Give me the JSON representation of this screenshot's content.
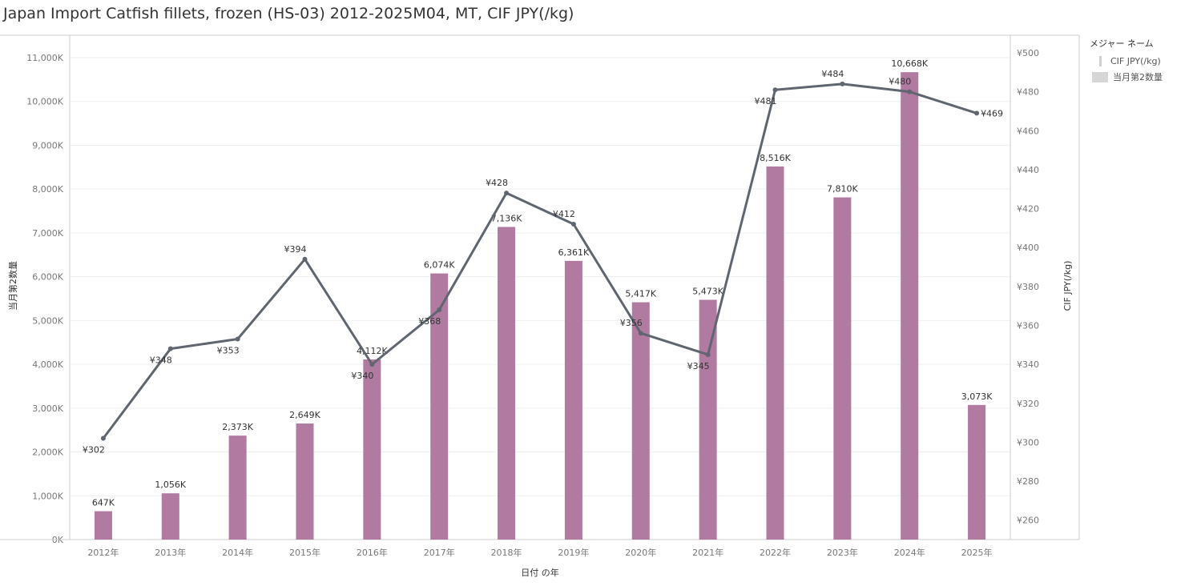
{
  "title": "Japan Import Catfish fillets, frozen (HS-03) 2012-2025M04, MT, CIF JPY(/kg)",
  "legend": {
    "title": "メジャー ネーム",
    "items": [
      {
        "label": "CIF JPY(/kg)",
        "kind": "line"
      },
      {
        "label": "当月第2数量",
        "kind": "bar"
      }
    ]
  },
  "colors": {
    "bar": "#b07aa1",
    "line": "#5f6670",
    "grid": "#efefef",
    "axis": "#cccccc"
  },
  "chart_data": {
    "type": "bar+line",
    "title": "Japan Import Catfish fillets, frozen (HS-03) 2012-2025M04, MT, CIF JPY(/kg)",
    "xlabel": "日付 の年",
    "ylabel_left": "当月第2数量",
    "ylabel_right": "CIF JPY(/kg)",
    "categories": [
      "2012年",
      "2013年",
      "2014年",
      "2015年",
      "2016年",
      "2017年",
      "2018年",
      "2019年",
      "2020年",
      "2021年",
      "2022年",
      "2023年",
      "2024年",
      "2025年"
    ],
    "bar_series": {
      "name": "当月第2数量",
      "values": [
        647,
        1056,
        2373,
        2649,
        4112,
        6074,
        7136,
        6361,
        5417,
        5473,
        8516,
        7810,
        10668,
        3073
      ],
      "labels": [
        "647K",
        "1,056K",
        "2,373K",
        "2,649K",
        "4,112K",
        "6,074K",
        "7,136K",
        "6,361K",
        "5,417K",
        "5,473K",
        "8,516K",
        "7,810K",
        "10,668K",
        "3,073K"
      ]
    },
    "line_series": {
      "name": "CIF JPY(/kg)",
      "values": [
        302,
        348,
        353,
        394,
        340,
        368,
        428,
        412,
        356,
        345,
        481,
        484,
        480,
        469
      ],
      "labels": [
        "¥302",
        "¥348",
        "¥353",
        "¥394",
        "¥340",
        "¥368",
        "¥428",
        "¥412",
        "¥356",
        "¥345",
        "¥481",
        "¥484",
        "¥480",
        "¥469"
      ]
    },
    "left_axis": {
      "ticks": [
        0,
        1000,
        2000,
        3000,
        4000,
        5000,
        6000,
        7000,
        8000,
        9000,
        10000,
        11000
      ],
      "tick_labels": [
        "0K",
        "1,000K",
        "2,000K",
        "3,000K",
        "4,000K",
        "5,000K",
        "6,000K",
        "7,000K",
        "8,000K",
        "9,000K",
        "10,000K",
        "11,000K"
      ],
      "ylim": [
        0,
        11000
      ]
    },
    "right_axis": {
      "ticks": [
        260,
        280,
        300,
        320,
        340,
        360,
        380,
        400,
        420,
        440,
        460,
        480,
        500
      ],
      "tick_labels": [
        "¥260",
        "¥280",
        "¥300",
        "¥320",
        "¥340",
        "¥360",
        "¥380",
        "¥400",
        "¥420",
        "¥440",
        "¥460",
        "¥480",
        "¥500"
      ],
      "ylim": [
        250,
        500
      ]
    },
    "grid": true,
    "legend_position": "top-right"
  }
}
